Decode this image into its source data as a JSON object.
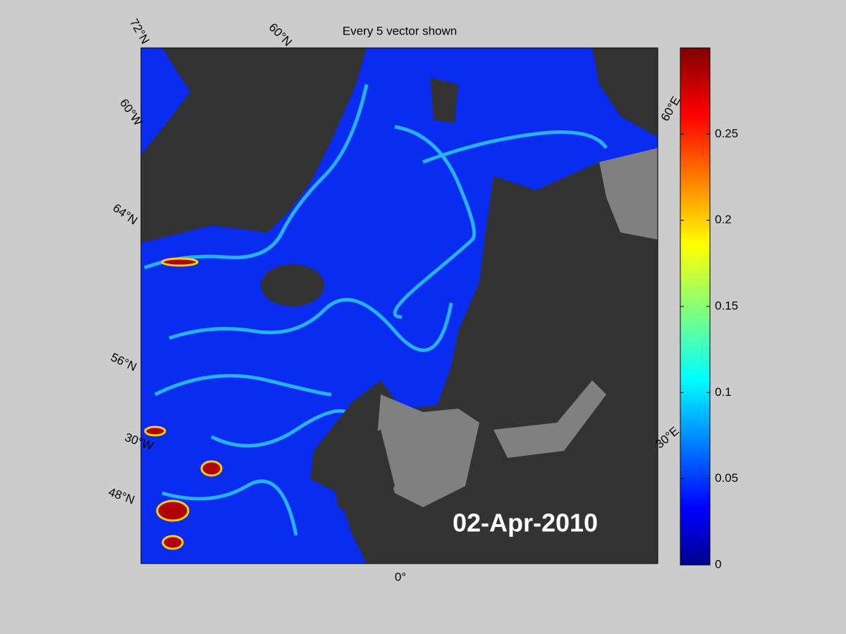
{
  "map": {
    "title": "Every 5 vector shown",
    "date_label": "02-Apr-2010",
    "graticule_labels": [
      "72°N",
      "60°N",
      "60°W",
      "64°N",
      "56°N",
      "30°W",
      "48°N",
      "0°",
      "60°E",
      "30°E"
    ],
    "colorbar": {
      "clim": [
        0,
        0.3
      ],
      "ticks": [
        0,
        0.05,
        0.1,
        0.15,
        0.2,
        0.25
      ]
    }
  }
}
